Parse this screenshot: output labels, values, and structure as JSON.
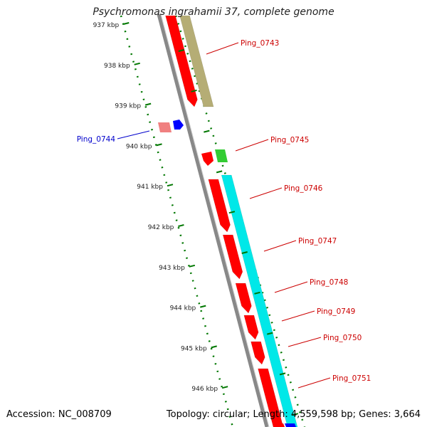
{
  "title": "Psychromonas ingrahamii 37, complete genome",
  "footer": {
    "accession": "Accession: NC_008709",
    "summary": "Topology: circular; Length: 4,559,598 bp; Genes: 3,664"
  },
  "colors": {
    "cds": "#ff0000",
    "forward_gene": "#0000ff",
    "tick": "#007700",
    "backbone": "#888888",
    "label_forward": "#cc0000",
    "label_reverse": "#0000cc",
    "track_olive": "#b5ad75",
    "track_cyan": "#00e8e8",
    "track_green": "#33cc33"
  },
  "ruler": [
    "937 kbp",
    "938 kbp",
    "939 kbp",
    "940 kbp",
    "941 kbp",
    "942 kbp",
    "943 kbp",
    "944 kbp",
    "945 kbp",
    "946 kbp"
  ],
  "genes": [
    {
      "label": "Ping_0743"
    },
    {
      "label": "Ping_0744"
    },
    {
      "label": "Ping_0745"
    },
    {
      "label": "Ping_0746"
    },
    {
      "label": "Ping_0747"
    },
    {
      "label": "Ping_0748"
    },
    {
      "label": "Ping_0749"
    },
    {
      "label": "Ping_0750"
    },
    {
      "label": "Ping_0751"
    }
  ]
}
